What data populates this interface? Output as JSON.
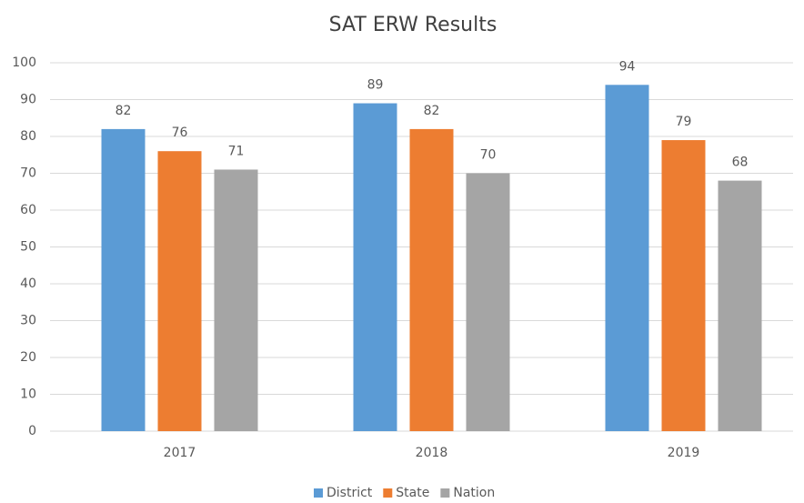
{
  "chart_data": {
    "type": "bar",
    "title": "SAT ERW Results",
    "categories": [
      "2017",
      "2018",
      "2019"
    ],
    "series": [
      {
        "name": "District",
        "color": "#5b9bd5",
        "values": [
          82,
          89,
          94
        ]
      },
      {
        "name": "State",
        "color": "#ed7d31",
        "values": [
          76,
          82,
          79
        ]
      },
      {
        "name": "Nation",
        "color": "#a5a5a5",
        "values": [
          71,
          70,
          68
        ]
      }
    ],
    "ylim": [
      0,
      100
    ],
    "yticks": [
      0,
      10,
      20,
      30,
      40,
      50,
      60,
      70,
      80,
      90,
      100
    ],
    "grid": true,
    "legend": "bottom"
  }
}
